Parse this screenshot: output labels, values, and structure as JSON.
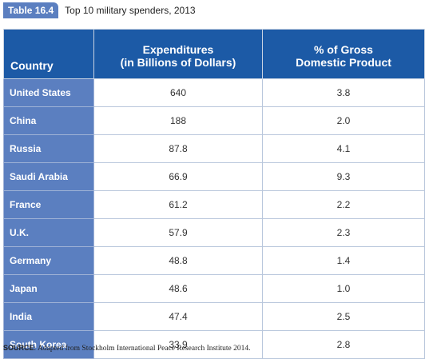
{
  "caption": {
    "badge": "Table 16.4",
    "title": "Top 10 military spenders, 2013"
  },
  "table": {
    "headers": {
      "country": "Country",
      "expenditures_line1": "Expenditures",
      "expenditures_line2": "(in Billions of Dollars)",
      "gdp_line1": "% of Gross",
      "gdp_line2": "Domestic Product"
    },
    "rows": [
      {
        "country": "United States",
        "expenditures": "640",
        "gdp": "3.8"
      },
      {
        "country": "China",
        "expenditures": "188",
        "gdp": "2.0"
      },
      {
        "country": "Russia",
        "expenditures": "87.8",
        "gdp": "4.1"
      },
      {
        "country": "Saudi Arabia",
        "expenditures": "66.9",
        "gdp": "9.3"
      },
      {
        "country": "France",
        "expenditures": "61.2",
        "gdp": "2.2"
      },
      {
        "country": "U.K.",
        "expenditures": "57.9",
        "gdp": "2.3"
      },
      {
        "country": "Germany",
        "expenditures": "48.8",
        "gdp": "1.4"
      },
      {
        "country": "Japan",
        "expenditures": "48.6",
        "gdp": "1.0"
      },
      {
        "country": "India",
        "expenditures": "47.4",
        "gdp": "2.5"
      },
      {
        "country": "South Korea",
        "expenditures": "33.9",
        "gdp": "2.8"
      }
    ]
  },
  "source": {
    "label": "SOURCE",
    "text": ": Adapted from Stockholm International Peace Research Institute 2014."
  },
  "colors": {
    "header_bg": "#1c5aa6",
    "country_bg": "#5b7fc0",
    "badge_bg": "#5b7fc0"
  }
}
